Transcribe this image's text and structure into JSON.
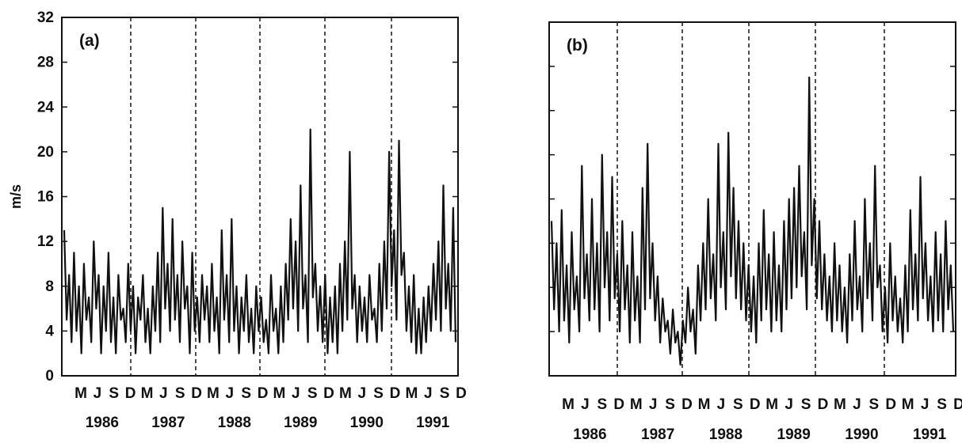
{
  "chart_data": [
    {
      "type": "line",
      "panel_label": "(a)",
      "ylabel": "m/s",
      "ylim": [
        0,
        32
      ],
      "yticks": [
        0,
        4,
        8,
        12,
        16,
        20,
        24,
        28,
        32
      ],
      "months": [
        "M",
        "J",
        "S",
        "D",
        "M",
        "J",
        "S",
        "D",
        "M",
        "J",
        "S",
        "D",
        "M",
        "J",
        "S",
        "D",
        "M",
        "J",
        "S",
        "D",
        "M",
        "J",
        "S",
        "D"
      ],
      "years": [
        "1986",
        "1987",
        "1988",
        "1989",
        "1990",
        "1991"
      ],
      "year_boundaries": [
        "D 1986",
        "D 1987",
        "D 1988",
        "D 1989",
        "D 1990"
      ],
      "series": [
        {
          "values": [
            13,
            5,
            9,
            3,
            11,
            4,
            8,
            2,
            10,
            5,
            7,
            3,
            12,
            6,
            9,
            2,
            8,
            4,
            11,
            3,
            7,
            2,
            9,
            5,
            6,
            3,
            10,
            4,
            8,
            2,
            7,
            5,
            9,
            3,
            6,
            2,
            8,
            4,
            11,
            3,
            15,
            6,
            10,
            4,
            14,
            5,
            9,
            3,
            12,
            6,
            8,
            2,
            11,
            4,
            7,
            3,
            9,
            5,
            8,
            3,
            10,
            4,
            7,
            2,
            13,
            5,
            9,
            3,
            14,
            4,
            8,
            2,
            7,
            4,
            9,
            3,
            6,
            2,
            8,
            4,
            7,
            3,
            5,
            2,
            9,
            4,
            6,
            2,
            8,
            3,
            10,
            5,
            14,
            6,
            12,
            4,
            17,
            6,
            9,
            3,
            22,
            7,
            10,
            4,
            8,
            3,
            9,
            2,
            7,
            3,
            8,
            2,
            10,
            4,
            12,
            5,
            20,
            6,
            9,
            3,
            8,
            4,
            7,
            3,
            9,
            5,
            6,
            3,
            10,
            4,
            12,
            6,
            20,
            8,
            13,
            5,
            21,
            9,
            11,
            4,
            8,
            3,
            9,
            2,
            6,
            2,
            7,
            3,
            8,
            4,
            10,
            5,
            12,
            4,
            17,
            6,
            10,
            4,
            15,
            3
          ]
        }
      ]
    },
    {
      "type": "line",
      "panel_label": "(b)",
      "ylim": [
        0,
        32
      ],
      "months": [
        "M",
        "J",
        "S",
        "D",
        "M",
        "J",
        "S",
        "D",
        "M",
        "J",
        "S",
        "D",
        "M",
        "J",
        "S",
        "D",
        "M",
        "J",
        "S",
        "D",
        "M",
        "J",
        "S",
        "D"
      ],
      "years": [
        "1986",
        "1987",
        "1988",
        "1989",
        "1990",
        "1991"
      ],
      "year_boundaries": [
        "D 1986",
        "D 1987",
        "D 1988",
        "D 1989",
        "D 1990"
      ],
      "series": [
        {
          "values": [
            14,
            6,
            12,
            4,
            15,
            5,
            10,
            3,
            13,
            6,
            9,
            4,
            19,
            7,
            11,
            5,
            16,
            6,
            12,
            4,
            20,
            8,
            13,
            5,
            18,
            7,
            11,
            4,
            14,
            6,
            10,
            3,
            13,
            5,
            9,
            3,
            17,
            6,
            21,
            7,
            12,
            5,
            9,
            3,
            7,
            4,
            5,
            2,
            6,
            3,
            4,
            1,
            5,
            3,
            8,
            4,
            6,
            2,
            10,
            5,
            12,
            6,
            16,
            7,
            11,
            5,
            21,
            8,
            13,
            6,
            22,
            9,
            17,
            7,
            14,
            6,
            12,
            5,
            10,
            4,
            9,
            3,
            12,
            5,
            15,
            6,
            11,
            4,
            13,
            5,
            10,
            4,
            14,
            6,
            16,
            7,
            17,
            8,
            19,
            9,
            13,
            6,
            27,
            10,
            16,
            7,
            14,
            6,
            11,
            5,
            9,
            4,
            12,
            5,
            10,
            4,
            8,
            3,
            11,
            5,
            14,
            6,
            9,
            4,
            16,
            7,
            12,
            5,
            19,
            8,
            10,
            4,
            8,
            3,
            12,
            5,
            9,
            4,
            7,
            3,
            10,
            4,
            15,
            6,
            11,
            5,
            18,
            7,
            12,
            5,
            9,
            4,
            13,
            5,
            11,
            4,
            14,
            6,
            10,
            4
          ]
        }
      ]
    }
  ]
}
